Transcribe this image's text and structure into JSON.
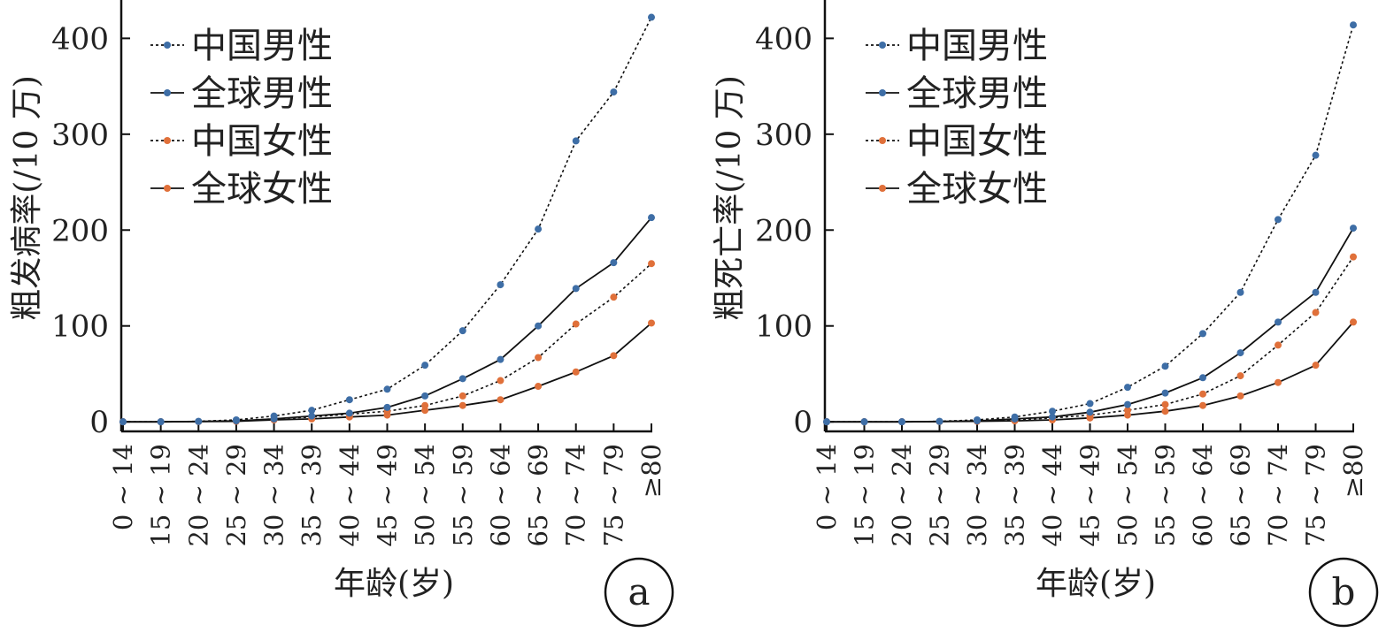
{
  "chart_data": [
    {
      "type": "line",
      "panel_label": "a",
      "xlabel": "年龄(岁)",
      "ylabel": "粗发病率(/10 万)",
      "yticks": [
        0,
        100,
        200,
        300,
        400
      ],
      "ylim": [
        -10,
        440
      ],
      "grid": false,
      "legend_position": "top-left",
      "categories": [
        "0 ~ 14",
        "15 ~ 19",
        "20 ~ 24",
        "25 ~ 29",
        "30 ~ 34",
        "35 ~ 39",
        "40 ~ 44",
        "45 ~ 49",
        "50 ~ 54",
        "55 ~ 59",
        "60 ~ 64",
        "65 ~ 69",
        "70 ~ 74",
        "75 ~ 79",
        "≥80"
      ],
      "series": [
        {
          "name": "中国男性",
          "color": "#3e6ea6",
          "dashed": true,
          "values": [
            0,
            0,
            0.5,
            2,
            6,
            12,
            23,
            34,
            59,
            95,
            143,
            201,
            293,
            344,
            422
          ]
        },
        {
          "name": "全球男性",
          "color": "#3e6ea6",
          "dashed": false,
          "values": [
            0,
            0,
            0.3,
            1,
            3,
            6,
            9,
            15,
            27,
            45,
            65,
            100,
            139,
            166,
            213
          ]
        },
        {
          "name": "中国女性",
          "color": "#e0703a",
          "dashed": true,
          "values": [
            0,
            0,
            0.3,
            1,
            3,
            5,
            8,
            11,
            17,
            27,
            43,
            67,
            102,
            130,
            165
          ]
        },
        {
          "name": "全球女性",
          "color": "#e0703a",
          "dashed": false,
          "values": [
            0,
            0,
            0.2,
            0.5,
            2,
            3,
            5,
            7,
            12,
            17,
            23,
            37,
            52,
            69,
            103
          ]
        }
      ]
    },
    {
      "type": "line",
      "panel_label": "b",
      "xlabel": "年龄(岁)",
      "ylabel": "粗死亡率(/10 万)",
      "yticks": [
        0,
        100,
        200,
        300,
        400
      ],
      "ylim": [
        -10,
        440
      ],
      "grid": false,
      "legend_position": "top-left",
      "categories": [
        "0 ~ 14",
        "15 ~ 19",
        "20 ~ 24",
        "25 ~ 29",
        "30 ~ 34",
        "35 ~ 39",
        "40 ~ 44",
        "45 ~ 49",
        "50 ~ 54",
        "55 ~ 59",
        "60 ~ 64",
        "65 ~ 69",
        "70 ~ 74",
        "75 ~ 79",
        "≥80"
      ],
      "series": [
        {
          "name": "中国男性",
          "color": "#3e6ea6",
          "dashed": true,
          "values": [
            0,
            0,
            0,
            0.5,
            2,
            5,
            11,
            19,
            36,
            58,
            92,
            135,
            211,
            278,
            414
          ]
        },
        {
          "name": "全球男性",
          "color": "#3e6ea6",
          "dashed": false,
          "values": [
            0,
            0,
            0,
            0.3,
            1,
            3,
            5,
            10,
            18,
            30,
            46,
            72,
            104,
            135,
            202
          ]
        },
        {
          "name": "中国女性",
          "color": "#e0703a",
          "dashed": true,
          "values": [
            0,
            0,
            0,
            0.3,
            1,
            2,
            4,
            7,
            12,
            18,
            29,
            48,
            80,
            114,
            172
          ]
        },
        {
          "name": "全球女性",
          "color": "#e0703a",
          "dashed": false,
          "values": [
            0,
            0,
            0,
            0.2,
            0.5,
            1,
            2,
            4,
            7,
            11,
            17,
            27,
            41,
            59,
            104
          ]
        }
      ]
    }
  ]
}
